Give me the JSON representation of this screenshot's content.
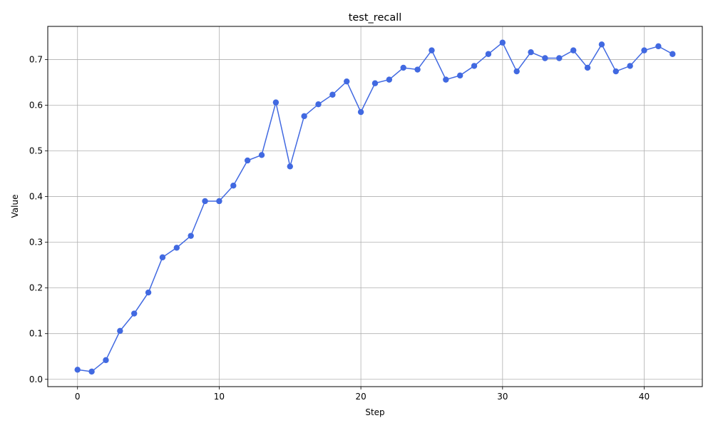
{
  "chart_data": {
    "type": "line",
    "title": "test_recall",
    "xlabel": "Step",
    "ylabel": "Value",
    "xlim": [
      -2.1,
      44.1
    ],
    "ylim": [
      -0.016,
      0.7725
    ],
    "xticks": [
      0,
      10,
      20,
      30,
      40
    ],
    "yticks": [
      0.0,
      0.1,
      0.2,
      0.3,
      0.4,
      0.5,
      0.6,
      0.7
    ],
    "ytick_labels": [
      "0.0",
      "0.1",
      "0.2",
      "0.3",
      "0.4",
      "0.5",
      "0.6",
      "0.7"
    ],
    "grid": true,
    "markers": true,
    "line_color": "#4169e1",
    "x": [
      0,
      1,
      2,
      3,
      4,
      5,
      6,
      7,
      8,
      9,
      10,
      11,
      12,
      13,
      14,
      15,
      16,
      17,
      18,
      19,
      20,
      21,
      22,
      23,
      24,
      25,
      26,
      27,
      28,
      29,
      30,
      31,
      32,
      33,
      34,
      35,
      36,
      37,
      38,
      39,
      40,
      41,
      42
    ],
    "values": [
      0.021,
      0.017,
      0.042,
      0.106,
      0.144,
      0.19,
      0.267,
      0.288,
      0.314,
      0.39,
      0.39,
      0.424,
      0.479,
      0.491,
      0.606,
      0.466,
      0.576,
      0.602,
      0.623,
      0.652,
      0.585,
      0.648,
      0.656,
      0.682,
      0.678,
      0.72,
      0.656,
      0.665,
      0.686,
      0.712,
      0.737,
      0.674,
      0.716,
      0.703,
      0.703,
      0.72,
      0.682,
      0.733,
      0.674,
      0.686,
      0.72,
      0.729,
      0.712
    ]
  }
}
